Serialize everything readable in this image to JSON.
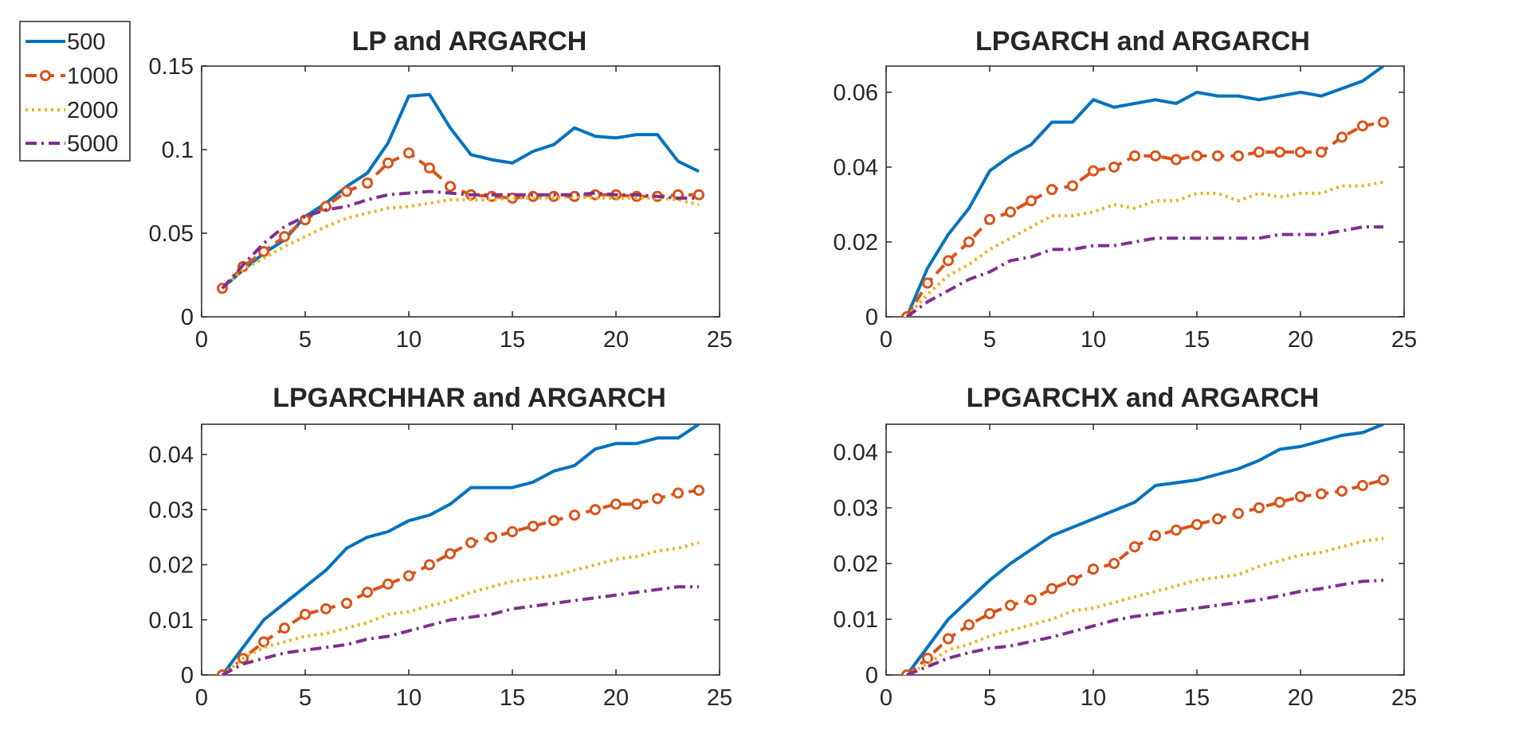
{
  "figure": {
    "legend": {
      "placement": "top-left",
      "entries": [
        {
          "label": "500",
          "color": "#0072BD",
          "style": "solid"
        },
        {
          "label": "1000",
          "color": "#D95319",
          "style": "dashed-circle"
        },
        {
          "label": "2000",
          "color": "#EDB120",
          "style": "dotted"
        },
        {
          "label": "5000",
          "color": "#7E2F8E",
          "style": "dashdot"
        }
      ]
    }
  },
  "chart_data": [
    {
      "type": "line",
      "title": "LP and ARGARCH",
      "xlabel": "",
      "ylabel": "",
      "xlim": [
        0,
        25
      ],
      "ylim": [
        0,
        0.15
      ],
      "xticks": [
        "0",
        "5",
        "10",
        "15",
        "20",
        "25"
      ],
      "yticks": [
        "0",
        "0.05",
        "0.1",
        "0.15"
      ],
      "xtick_values": [
        0,
        5,
        10,
        15,
        20,
        25
      ],
      "ytick_values": [
        0,
        0.05,
        0.1,
        0.15
      ],
      "x": [
        1,
        2,
        3,
        4,
        5,
        6,
        7,
        8,
        9,
        10,
        11,
        12,
        13,
        14,
        15,
        16,
        17,
        18,
        19,
        20,
        21,
        22,
        23,
        24
      ],
      "series": [
        {
          "name": "500",
          "values": [
            0.017,
            0.028,
            0.038,
            0.046,
            0.06,
            0.068,
            0.078,
            0.086,
            0.104,
            0.132,
            0.133,
            0.113,
            0.097,
            0.094,
            0.092,
            0.099,
            0.103,
            0.113,
            0.108,
            0.107,
            0.109,
            0.109,
            0.093,
            0.087
          ]
        },
        {
          "name": "1000",
          "values": [
            0.017,
            0.03,
            0.039,
            0.048,
            0.058,
            0.066,
            0.075,
            0.08,
            0.092,
            0.098,
            0.089,
            0.078,
            0.073,
            0.072,
            0.071,
            0.072,
            0.072,
            0.072,
            0.073,
            0.073,
            0.072,
            0.072,
            0.073,
            0.073
          ]
        },
        {
          "name": "2000",
          "values": [
            0.017,
            0.028,
            0.035,
            0.042,
            0.048,
            0.054,
            0.059,
            0.062,
            0.065,
            0.066,
            0.068,
            0.07,
            0.07,
            0.07,
            0.071,
            0.071,
            0.071,
            0.072,
            0.071,
            0.071,
            0.071,
            0.071,
            0.07,
            0.067
          ]
        },
        {
          "name": "5000",
          "values": [
            0.017,
            0.031,
            0.044,
            0.054,
            0.06,
            0.064,
            0.066,
            0.07,
            0.073,
            0.074,
            0.075,
            0.074,
            0.073,
            0.073,
            0.073,
            0.073,
            0.073,
            0.073,
            0.074,
            0.073,
            0.073,
            0.072,
            0.071,
            0.071
          ]
        }
      ]
    },
    {
      "type": "line",
      "title": "LPGARCH and ARGARCH",
      "xlabel": "",
      "ylabel": "",
      "xlim": [
        0,
        25
      ],
      "ylim": [
        0,
        0.067
      ],
      "xticks": [
        "0",
        "5",
        "10",
        "15",
        "20",
        "25"
      ],
      "yticks": [
        "0",
        "0.02",
        "0.04",
        "0.06"
      ],
      "xtick_values": [
        0,
        5,
        10,
        15,
        20,
        25
      ],
      "ytick_values": [
        0,
        0.02,
        0.04,
        0.06
      ],
      "x": [
        1,
        2,
        3,
        4,
        5,
        6,
        7,
        8,
        9,
        10,
        11,
        12,
        13,
        14,
        15,
        16,
        17,
        18,
        19,
        20,
        21,
        22,
        23,
        24
      ],
      "series": [
        {
          "name": "500",
          "values": [
            0.0,
            0.013,
            0.022,
            0.029,
            0.039,
            0.043,
            0.046,
            0.052,
            0.052,
            0.058,
            0.056,
            0.057,
            0.058,
            0.057,
            0.06,
            0.059,
            0.059,
            0.058,
            0.059,
            0.06,
            0.059,
            0.061,
            0.063,
            0.067
          ]
        },
        {
          "name": "1000",
          "values": [
            0.0,
            0.009,
            0.015,
            0.02,
            0.026,
            0.028,
            0.031,
            0.034,
            0.035,
            0.039,
            0.04,
            0.043,
            0.043,
            0.042,
            0.043,
            0.043,
            0.043,
            0.044,
            0.044,
            0.044,
            0.044,
            0.048,
            0.051,
            0.052
          ]
        },
        {
          "name": "2000",
          "values": [
            0.0,
            0.006,
            0.011,
            0.014,
            0.018,
            0.021,
            0.024,
            0.027,
            0.027,
            0.028,
            0.03,
            0.029,
            0.031,
            0.031,
            0.033,
            0.033,
            0.031,
            0.033,
            0.032,
            0.033,
            0.033,
            0.035,
            0.035,
            0.036
          ]
        },
        {
          "name": "5000",
          "values": [
            0.0,
            0.004,
            0.007,
            0.01,
            0.012,
            0.015,
            0.016,
            0.018,
            0.018,
            0.019,
            0.019,
            0.02,
            0.021,
            0.021,
            0.021,
            0.021,
            0.021,
            0.021,
            0.022,
            0.022,
            0.022,
            0.023,
            0.024,
            0.024
          ]
        }
      ]
    },
    {
      "type": "line",
      "title": "LPGARCHHAR and ARGARCH",
      "xlabel": "",
      "ylabel": "",
      "xlim": [
        0,
        25
      ],
      "ylim": [
        0,
        0.0455
      ],
      "xticks": [
        "0",
        "5",
        "10",
        "15",
        "20",
        "25"
      ],
      "yticks": [
        "0",
        "0.01",
        "0.02",
        "0.03",
        "0.04"
      ],
      "xtick_values": [
        0,
        5,
        10,
        15,
        20,
        25
      ],
      "ytick_values": [
        0,
        0.01,
        0.02,
        0.03,
        0.04
      ],
      "x": [
        1,
        2,
        3,
        4,
        5,
        6,
        7,
        8,
        9,
        10,
        11,
        12,
        13,
        14,
        15,
        16,
        17,
        18,
        19,
        20,
        21,
        22,
        23,
        24
      ],
      "series": [
        {
          "name": "500",
          "values": [
            0.0,
            0.005,
            0.01,
            0.013,
            0.016,
            0.019,
            0.023,
            0.025,
            0.026,
            0.028,
            0.029,
            0.031,
            0.034,
            0.034,
            0.034,
            0.035,
            0.037,
            0.038,
            0.041,
            0.042,
            0.042,
            0.043,
            0.043,
            0.0455
          ]
        },
        {
          "name": "1000",
          "values": [
            0.0,
            0.003,
            0.006,
            0.0085,
            0.011,
            0.012,
            0.013,
            0.015,
            0.0165,
            0.018,
            0.02,
            0.022,
            0.024,
            0.025,
            0.026,
            0.027,
            0.028,
            0.029,
            0.03,
            0.031,
            0.031,
            0.032,
            0.033,
            0.0335
          ]
        },
        {
          "name": "2000",
          "values": [
            0.0,
            0.003,
            0.005,
            0.006,
            0.007,
            0.0075,
            0.0085,
            0.0095,
            0.011,
            0.0115,
            0.0125,
            0.0135,
            0.015,
            0.016,
            0.017,
            0.0175,
            0.018,
            0.019,
            0.02,
            0.021,
            0.0215,
            0.0225,
            0.023,
            0.024
          ]
        },
        {
          "name": "5000",
          "values": [
            0.0,
            0.002,
            0.003,
            0.004,
            0.0045,
            0.005,
            0.0055,
            0.0065,
            0.007,
            0.008,
            0.009,
            0.01,
            0.0105,
            0.011,
            0.012,
            0.0125,
            0.013,
            0.0135,
            0.014,
            0.0145,
            0.015,
            0.0155,
            0.016,
            0.016
          ]
        }
      ]
    },
    {
      "type": "line",
      "title": "LPGARCHX and ARGARCH",
      "xlabel": "",
      "ylabel": "",
      "xlim": [
        0,
        25
      ],
      "ylim": [
        0,
        0.045
      ],
      "xticks": [
        "0",
        "5",
        "10",
        "15",
        "20",
        "25"
      ],
      "yticks": [
        "0",
        "0.01",
        "0.02",
        "0.03",
        "0.04"
      ],
      "xtick_values": [
        0,
        5,
        10,
        15,
        20,
        25
      ],
      "ytick_values": [
        0,
        0.01,
        0.02,
        0.03,
        0.04
      ],
      "x": [
        1,
        2,
        3,
        4,
        5,
        6,
        7,
        8,
        9,
        10,
        11,
        12,
        13,
        14,
        15,
        16,
        17,
        18,
        19,
        20,
        21,
        22,
        23,
        24
      ],
      "series": [
        {
          "name": "500",
          "values": [
            0.0,
            0.005,
            0.01,
            0.0135,
            0.017,
            0.02,
            0.0225,
            0.025,
            0.0265,
            0.028,
            0.0295,
            0.031,
            0.034,
            0.0345,
            0.035,
            0.036,
            0.037,
            0.0385,
            0.0405,
            0.041,
            0.042,
            0.043,
            0.0435,
            0.045
          ]
        },
        {
          "name": "1000",
          "values": [
            0.0,
            0.003,
            0.0065,
            0.009,
            0.011,
            0.0125,
            0.0135,
            0.0155,
            0.017,
            0.019,
            0.02,
            0.023,
            0.025,
            0.026,
            0.027,
            0.028,
            0.029,
            0.03,
            0.031,
            0.032,
            0.0325,
            0.033,
            0.034,
            0.035
          ]
        },
        {
          "name": "2000",
          "values": [
            0.0,
            0.002,
            0.0045,
            0.0055,
            0.007,
            0.008,
            0.009,
            0.01,
            0.0115,
            0.012,
            0.013,
            0.014,
            0.015,
            0.016,
            0.017,
            0.0175,
            0.018,
            0.0195,
            0.0205,
            0.0215,
            0.022,
            0.023,
            0.024,
            0.0245
          ]
        },
        {
          "name": "5000",
          "values": [
            0.0,
            0.0015,
            0.003,
            0.004,
            0.0048,
            0.0052,
            0.006,
            0.0068,
            0.0078,
            0.0088,
            0.0098,
            0.0105,
            0.011,
            0.0115,
            0.012,
            0.0125,
            0.013,
            0.0135,
            0.0142,
            0.015,
            0.0155,
            0.0162,
            0.0168,
            0.017
          ]
        }
      ]
    }
  ]
}
